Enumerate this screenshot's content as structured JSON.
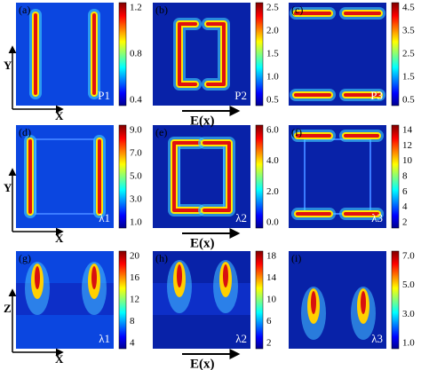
{
  "panels": [
    {
      "label": "(a)",
      "corner": "P1",
      "ticks": [
        "1.2",
        "0.8",
        "0.4"
      ]
    },
    {
      "label": "(b)",
      "corner": "P2",
      "ticks": [
        "2.5",
        "2.0",
        "1.5",
        "1.0",
        "0.5"
      ]
    },
    {
      "label": "(c)",
      "corner": "P3",
      "ticks": [
        "4.5",
        "3.5",
        "2.5",
        "1.5",
        "0.5"
      ]
    },
    {
      "label": "(d)",
      "corner": "λ1",
      "ticks": [
        "9.0",
        "7.0",
        "5.0",
        "3.0",
        "1.0"
      ]
    },
    {
      "label": "(e)",
      "corner": "λ2",
      "ticks": [
        "6.0",
        "4.0",
        "2.0",
        "0.0"
      ]
    },
    {
      "label": "(f)",
      "corner": "λ3",
      "ticks": [
        "14",
        "12",
        "10",
        "8",
        "6",
        "4",
        "2"
      ]
    },
    {
      "label": "(g)",
      "corner": "λ1",
      "ticks": [
        "20",
        "16",
        "12",
        "8",
        "4"
      ]
    },
    {
      "label": "(h)",
      "corner": "λ2",
      "ticks": [
        "18",
        "14",
        "10",
        "6",
        "2"
      ]
    },
    {
      "label": "(i)",
      "corner": "λ3",
      "ticks": [
        "7.0",
        "5.0",
        "3.0",
        "1.0"
      ]
    }
  ],
  "axes": [
    {
      "vertical": "Y",
      "horizontal": "X"
    },
    {
      "vertical": "Y",
      "horizontal": "X"
    },
    {
      "vertical": "Z",
      "horizontal": "X"
    }
  ],
  "field_labels": [
    "E(x)",
    "E(x)",
    "E(x)"
  ]
}
